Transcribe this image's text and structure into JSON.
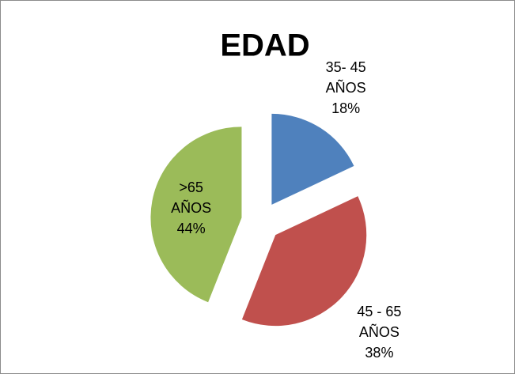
{
  "chart_data": {
    "type": "pie",
    "title": "EDAD",
    "categories": [
      "35- 45 AÑOS",
      "45 - 65 AÑOS",
      ">65 AÑOS"
    ],
    "values": [
      18,
      38,
      44
    ],
    "value_labels": [
      "18%",
      "38%",
      "44%"
    ],
    "colors": [
      "#4f81bd",
      "#c0504d",
      "#9bbb59"
    ]
  }
}
